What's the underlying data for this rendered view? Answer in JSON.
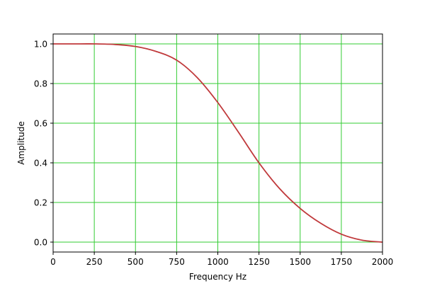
{
  "chart_data": {
    "type": "line",
    "title": "",
    "xlabel": "Frequency Hz",
    "ylabel": "Amplitude",
    "xlim": [
      0,
      2000
    ],
    "ylim": [
      -0.05,
      1.05
    ],
    "xticks": [
      0,
      250,
      500,
      750,
      1000,
      1250,
      1500,
      1750,
      2000
    ],
    "xtick_labels": [
      "0",
      "250",
      "500",
      "750",
      "1000",
      "1250",
      "1500",
      "1750",
      "2000"
    ],
    "yticks": [
      0.0,
      0.2,
      0.4,
      0.6,
      0.8,
      1.0
    ],
    "ytick_labels": [
      "0.0",
      "0.2",
      "0.4",
      "0.6",
      "0.8",
      "1.0"
    ],
    "grid": true,
    "grid_color": "#33cc33",
    "series": [
      {
        "color": "#c0393b",
        "x": [
          0,
          125,
          250,
          375,
          500,
          625,
          750,
          875,
          1000,
          1125,
          1250,
          1375,
          1500,
          1625,
          1750,
          1875,
          2000
        ],
        "y": [
          1.0,
          1.0,
          1.0,
          0.997,
          0.987,
          0.962,
          0.918,
          0.83,
          0.704,
          0.555,
          0.4,
          0.27,
          0.17,
          0.095,
          0.04,
          0.01,
          0.0
        ]
      }
    ]
  }
}
